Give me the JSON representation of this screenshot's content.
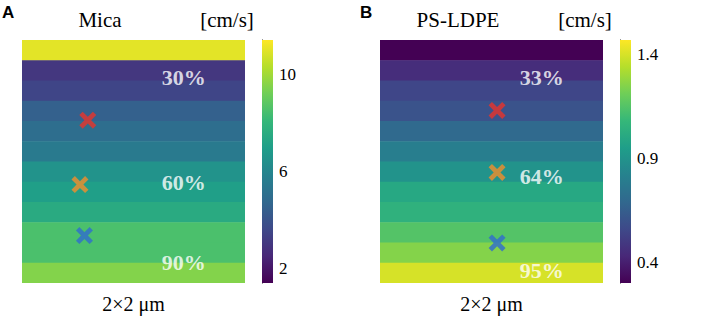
{
  "chart_data": [
    {
      "type": "heatmap",
      "panel_label": "A",
      "title": "Mica",
      "colorbar_label": "[cm/s]",
      "xlabel": "2×2 μm",
      "xlim": [
        0,
        2
      ],
      "ylim": [
        0,
        2
      ],
      "tick_labels": false,
      "cells": [
        11.0,
        3.0,
        3.5,
        4.5,
        5.0,
        5.5,
        6.5,
        7.0,
        7.5,
        8.5,
        8.5,
        9.5
      ],
      "colorbar_range": [
        1.4,
        11.4
      ],
      "colorbar_ticks": [
        2,
        6,
        10
      ],
      "marker": "x",
      "markers": [
        {
          "x": 0.59,
          "y": 1.34,
          "color": "#e8332a"
        },
        {
          "x": 0.52,
          "y": 0.81,
          "color": "#f28e2b"
        },
        {
          "x": 0.56,
          "y": 0.39,
          "color": "#2f6ccf"
        }
      ],
      "annotations": [
        {
          "text": "30%",
          "x": 1.45,
          "y": 1.69
        },
        {
          "text": "60%",
          "x": 1.45,
          "y": 0.83
        },
        {
          "text": "90%",
          "x": 1.45,
          "y": 0.17
        }
      ]
    },
    {
      "type": "heatmap",
      "panel_label": "B",
      "title": "PS-LDPE",
      "colorbar_label": "[cm/s]",
      "xlabel": "2×2 μm",
      "xlim": [
        0,
        2
      ],
      "ylim": [
        0,
        2
      ],
      "tick_labels": false,
      "cells": [
        0.3,
        0.45,
        0.55,
        0.6,
        0.7,
        0.8,
        0.9,
        1.0,
        1.05,
        1.15,
        1.25,
        1.4
      ],
      "colorbar_range": [
        0.3,
        1.47
      ],
      "colorbar_ticks": [
        0.4,
        0.9,
        1.4
      ],
      "marker": "x",
      "markers": [
        {
          "x": 1.05,
          "y": 1.42,
          "color": "#e8332a"
        },
        {
          "x": 1.05,
          "y": 0.91,
          "color": "#f28e2b"
        },
        {
          "x": 1.05,
          "y": 0.33,
          "color": "#2f6ccf"
        }
      ],
      "annotations": [
        {
          "text": "33%",
          "x": 1.45,
          "y": 1.69
        },
        {
          "text": "64%",
          "x": 1.45,
          "y": 0.88
        },
        {
          "text": "95%",
          "x": 1.45,
          "y": 0.1
        }
      ]
    }
  ]
}
